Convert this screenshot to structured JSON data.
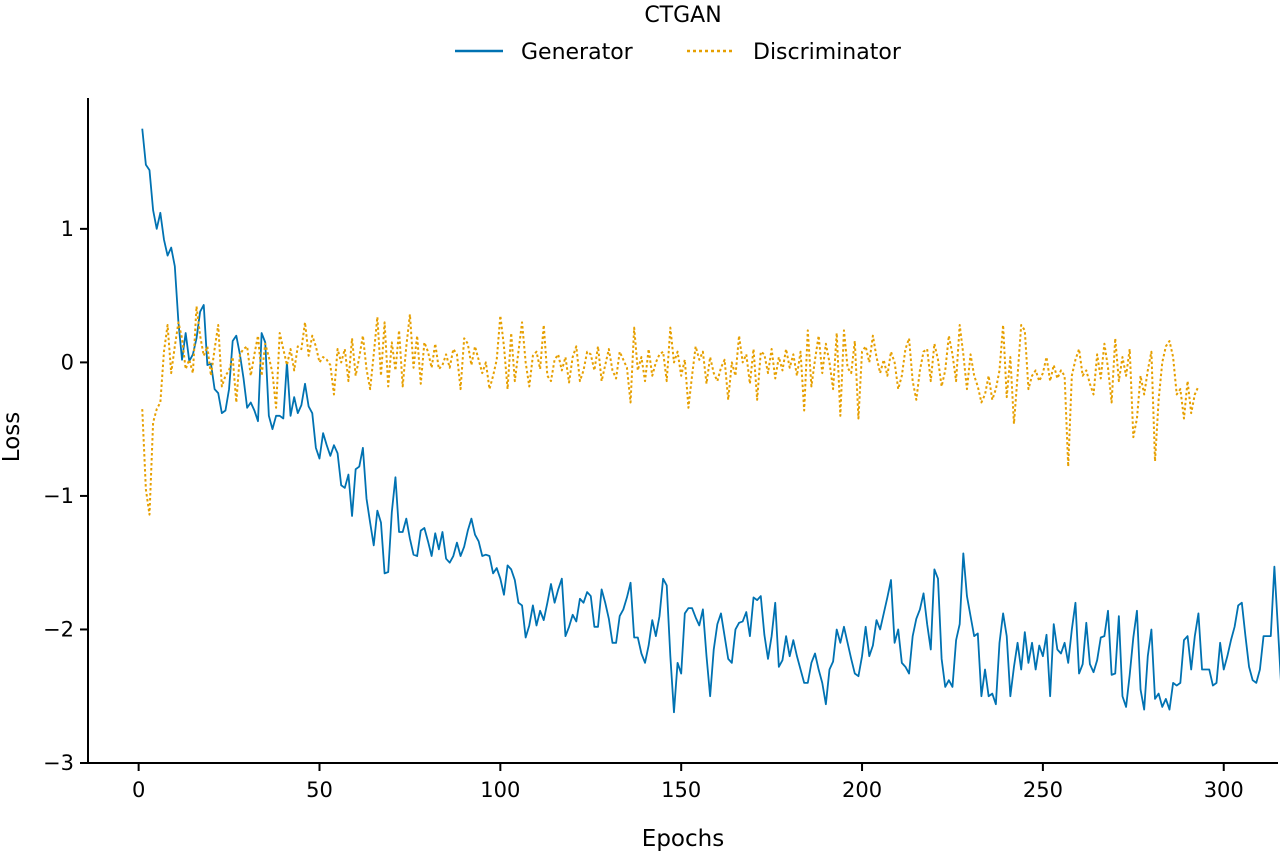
{
  "chart_data": {
    "type": "line",
    "title": "",
    "xlabel": "Epochs",
    "ylabel": "Loss",
    "xlim": [
      -14,
      315
    ],
    "ylim": [
      -3,
      1.98
    ],
    "xticks": [
      0,
      50,
      100,
      150,
      200,
      250,
      300
    ],
    "yticks": [
      -3,
      -2,
      -1,
      0,
      1
    ],
    "grid": false,
    "legend": {
      "title": "CTGAN",
      "placement": "top-center"
    },
    "series": [
      {
        "name": "Generator",
        "color": "#0072B2",
        "style": "solid",
        "x_start": 1,
        "x_step": 1,
        "values": [
          1.75,
          1.48,
          1.44,
          1.14,
          1.0,
          1.12,
          0.92,
          0.8,
          0.86,
          0.72,
          0.3,
          0.02,
          0.22,
          0.01,
          0.06,
          0.18,
          0.38,
          0.43,
          -0.02,
          -0.01,
          -0.2,
          -0.23,
          -0.38,
          -0.36,
          -0.2,
          0.16,
          0.2,
          0.06,
          -0.12,
          -0.34,
          -0.3,
          -0.36,
          -0.44,
          0.22,
          0.15,
          -0.4,
          -0.5,
          -0.4,
          -0.4,
          -0.42,
          0.0,
          -0.4,
          -0.26,
          -0.38,
          -0.32,
          -0.16,
          -0.33,
          -0.38,
          -0.64,
          -0.72,
          -0.53,
          -0.62,
          -0.7,
          -0.62,
          -0.68,
          -0.92,
          -0.94,
          -0.84,
          -1.15,
          -0.8,
          -0.78,
          -0.64,
          -1.02,
          -1.2,
          -1.37,
          -1.11,
          -1.2,
          -1.58,
          -1.57,
          -1.12,
          -0.86,
          -1.27,
          -1.27,
          -1.17,
          -1.32,
          -1.44,
          -1.45,
          -1.26,
          -1.24,
          -1.34,
          -1.45,
          -1.28,
          -1.4,
          -1.27,
          -1.47,
          -1.5,
          -1.45,
          -1.35,
          -1.45,
          -1.38,
          -1.26,
          -1.17,
          -1.29,
          -1.34,
          -1.45,
          -1.44,
          -1.45,
          -1.58,
          -1.54,
          -1.62,
          -1.74,
          -1.52,
          -1.55,
          -1.63,
          -1.8,
          -1.82,
          -2.06,
          -1.97,
          -1.82,
          -1.97,
          -1.86,
          -1.93,
          -1.8,
          -1.66,
          -1.8,
          -1.7,
          -1.62,
          -2.05,
          -1.98,
          -1.89,
          -1.94,
          -1.77,
          -1.8,
          -1.72,
          -1.75,
          -1.98,
          -1.98,
          -1.7,
          -1.8,
          -1.92,
          -2.1,
          -2.1,
          -1.9,
          -1.85,
          -1.76,
          -1.65,
          -2.06,
          -2.06,
          -2.18,
          -2.25,
          -2.12,
          -1.93,
          -2.05,
          -1.9,
          -1.62,
          -1.67,
          -2.2,
          -2.62,
          -2.25,
          -2.33,
          -1.88,
          -1.84,
          -1.84,
          -1.91,
          -1.97,
          -1.85,
          -2.2,
          -2.5,
          -2.15,
          -1.96,
          -1.88,
          -2.05,
          -2.22,
          -2.25,
          -2.0,
          -1.95,
          -1.94,
          -1.87,
          -2.05,
          -1.76,
          -1.78,
          -1.75,
          -2.04,
          -2.22,
          -2.05,
          -1.8,
          -2.28,
          -2.23,
          -2.05,
          -2.2,
          -2.08,
          -2.2,
          -2.3,
          -2.4,
          -2.4,
          -2.25,
          -2.18,
          -2.3,
          -2.4,
          -2.56,
          -2.3,
          -2.24,
          -2.0,
          -2.1,
          -1.98,
          -2.1,
          -2.22,
          -2.33,
          -2.35,
          -2.2,
          -1.98,
          -2.2,
          -2.12,
          -1.93,
          -2.0,
          -1.88,
          -1.76,
          -1.63,
          -2.1,
          -2.0,
          -2.25,
          -2.28,
          -2.33,
          -2.05,
          -1.92,
          -1.85,
          -1.73,
          -1.96,
          -2.15,
          -1.55,
          -1.62,
          -2.22,
          -2.43,
          -2.38,
          -2.43,
          -2.08,
          -1.96,
          -1.43,
          -1.75,
          -1.9,
          -2.05,
          -2.03,
          -2.5,
          -2.3,
          -2.5,
          -2.48,
          -2.56,
          -2.1,
          -1.88,
          -2.05,
          -2.5,
          -2.28,
          -2.1,
          -2.3,
          -2.02,
          -2.25,
          -2.1,
          -2.3,
          -2.12,
          -2.2,
          -2.04,
          -2.5,
          -1.96,
          -2.15,
          -2.18,
          -2.1,
          -2.25,
          -2.0,
          -1.8,
          -2.33,
          -2.26,
          -1.95,
          -2.26,
          -2.32,
          -2.23,
          -2.06,
          -2.05,
          -1.86,
          -2.34,
          -2.33,
          -1.9,
          -2.5,
          -2.58,
          -2.34,
          -2.06,
          -1.86,
          -2.45,
          -2.6,
          -2.2,
          -2.0,
          -2.52,
          -2.48,
          -2.58,
          -2.52,
          -2.6,
          -2.4,
          -2.42,
          -2.4,
          -2.08,
          -2.05,
          -2.3,
          -2.05,
          -1.88,
          -2.3,
          -2.3,
          -2.3,
          -2.42,
          -2.4,
          -2.1,
          -2.3,
          -2.2,
          -2.08,
          -1.98,
          -1.82,
          -1.8,
          -2.05,
          -2.28,
          -2.38,
          -2.4,
          -2.3,
          -2.05,
          -2.05,
          -2.05,
          -1.53,
          -2.0,
          -2.48
        ]
      },
      {
        "name": "Discriminator",
        "color": "#E69F00",
        "style": "dotted",
        "x_start": 1,
        "x_step": 1,
        "values": [
          -0.35,
          -0.95,
          -1.14,
          -0.45,
          -0.35,
          -0.3,
          0.08,
          0.28,
          -0.08,
          0.12,
          0.3,
          0.18,
          -0.05,
          0.02,
          -0.08,
          0.42,
          0.2,
          0.05,
          0.12,
          -0.1,
          0.1,
          0.28,
          -0.18,
          -0.1,
          -0.06,
          0.04,
          -0.3,
          0.06,
          0.1,
          0.12,
          -0.1,
          0.06,
          0.2,
          -0.1,
          0.14,
          0.04,
          -0.08,
          -0.34,
          0.22,
          0.1,
          -0.02,
          0.1,
          -0.06,
          0.12,
          0.1,
          0.3,
          0.05,
          0.2,
          0.12,
          0.0,
          0.04,
          0.02,
          -0.02,
          -0.24,
          0.1,
          0.0,
          0.1,
          -0.14,
          0.18,
          -0.1,
          0.04,
          0.2,
          -0.05,
          -0.2,
          0.06,
          0.34,
          -0.1,
          0.3,
          -0.18,
          0.15,
          -0.06,
          0.24,
          -0.18,
          0.12,
          0.36,
          -0.04,
          0.2,
          -0.16,
          0.15,
          0.08,
          -0.04,
          0.14,
          -0.05,
          -0.02,
          0.06,
          -0.04,
          0.1,
          0.06,
          -0.2,
          0.18,
          0.14,
          -0.02,
          0.12,
          0.02,
          -0.08,
          0.0,
          -0.2,
          -0.1,
          0.02,
          0.35,
          0.12,
          -0.2,
          0.22,
          -0.14,
          0.08,
          0.3,
          0.0,
          -0.18,
          0.05,
          0.08,
          -0.05,
          0.28,
          -0.1,
          -0.14,
          0.02,
          0.06,
          -0.06,
          0.04,
          -0.15,
          0.04,
          0.12,
          -0.14,
          -0.06,
          0.08,
          0.06,
          -0.06,
          0.12,
          -0.14,
          -0.02,
          0.1,
          -0.06,
          -0.12,
          0.08,
          0.02,
          -0.04,
          -0.3,
          0.26,
          -0.06,
          0.04,
          -0.14,
          0.1,
          -0.1,
          0.0,
          0.06,
          0.08,
          -0.14,
          0.26,
          0.0,
          0.08,
          -0.1,
          0.02,
          -0.34,
          -0.1,
          0.12,
          0.02,
          0.08,
          -0.16,
          0.04,
          -0.08,
          -0.14,
          -0.04,
          0.02,
          -0.28,
          0.0,
          -0.1,
          0.2,
          0.0,
          0.06,
          -0.16,
          0.1,
          -0.28,
          0.08,
          0.06,
          -0.08,
          0.1,
          -0.12,
          0.04,
          -0.06,
          0.1,
          -0.04,
          0.06,
          -0.1,
          0.08,
          -0.36,
          0.24,
          -0.18,
          0.02,
          0.2,
          -0.08,
          0.14,
          0.0,
          -0.2,
          0.22,
          -0.4,
          0.24,
          -0.04,
          -0.08,
          0.16,
          -0.42,
          0.08,
          0.12,
          0.0,
          0.2,
          0.04,
          -0.08,
          0.02,
          -0.1,
          0.08,
          0.0,
          -0.2,
          -0.1,
          0.1,
          0.18,
          -0.14,
          -0.28,
          -0.06,
          0.08,
          0.1,
          -0.14,
          0.14,
          0.02,
          -0.18,
          -0.06,
          0.2,
          0.06,
          -0.14,
          0.28,
          0.06,
          -0.2,
          0.06,
          -0.1,
          -0.18,
          -0.3,
          -0.24,
          -0.1,
          -0.28,
          -0.2,
          -0.06,
          0.28,
          -0.26,
          0.04,
          -0.46,
          -0.1,
          0.28,
          0.24,
          -0.2,
          -0.1,
          -0.06,
          -0.14,
          -0.08,
          0.04,
          -0.14,
          -0.02,
          -0.12,
          -0.06,
          -0.1,
          -0.78,
          -0.1,
          0.02,
          0.1,
          -0.1,
          -0.06,
          -0.16,
          -0.24,
          0.06,
          -0.12,
          0.14,
          -0.04,
          -0.3,
          0.18,
          -0.14,
          0.04,
          -0.1,
          0.1,
          -0.56,
          -0.42,
          -0.1,
          -0.24,
          -0.06,
          0.08,
          -0.74,
          -0.28,
          0.0,
          0.12,
          0.16,
          0.04,
          -0.24,
          -0.2,
          -0.42,
          -0.14,
          -0.38,
          -0.24,
          -0.18
        ]
      }
    ]
  }
}
